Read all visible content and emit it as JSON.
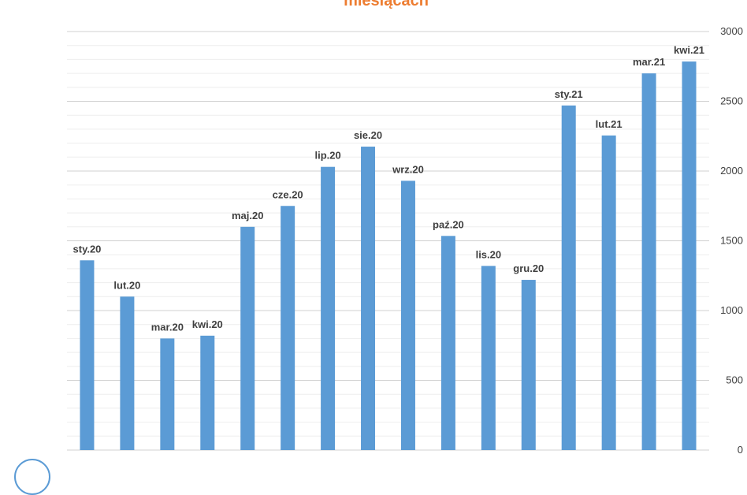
{
  "chart_data": {
    "type": "bar",
    "title": "miesiącach",
    "categories": [
      "sty.20",
      "lut.20",
      "mar.20",
      "kwi.20",
      "maj.20",
      "cze.20",
      "lip.20",
      "sie.20",
      "wrz.20",
      "paź.20",
      "lis.20",
      "gru.20",
      "sty.21",
      "lut.21",
      "mar.21",
      "kwi.21"
    ],
    "values": [
      1360,
      1100,
      800,
      820,
      1600,
      1750,
      2030,
      2175,
      1930,
      1535,
      1320,
      1220,
      2470,
      2255,
      2700,
      2785
    ],
    "data_labels": [
      "sty.20",
      "lut.20",
      "mar.20",
      "kwi.20",
      "maj.20",
      "cze.20",
      "lip.20",
      "sie.20",
      "wrz.20",
      "paź.20",
      "lis.20",
      "gru.20",
      "sty.21",
      "lut.21",
      "mar.21",
      "kwi.21"
    ],
    "y_ticks": [
      "0",
      "500",
      "1000",
      "1500",
      "2000",
      "2500",
      "3000"
    ],
    "ylim": [
      0,
      3000
    ],
    "y_axis_side": "right",
    "grid": true,
    "legend": false,
    "bar_color": "#5B9BD5",
    "title_color": "#ED7D31",
    "grid_color": "#D9D9D9"
  }
}
